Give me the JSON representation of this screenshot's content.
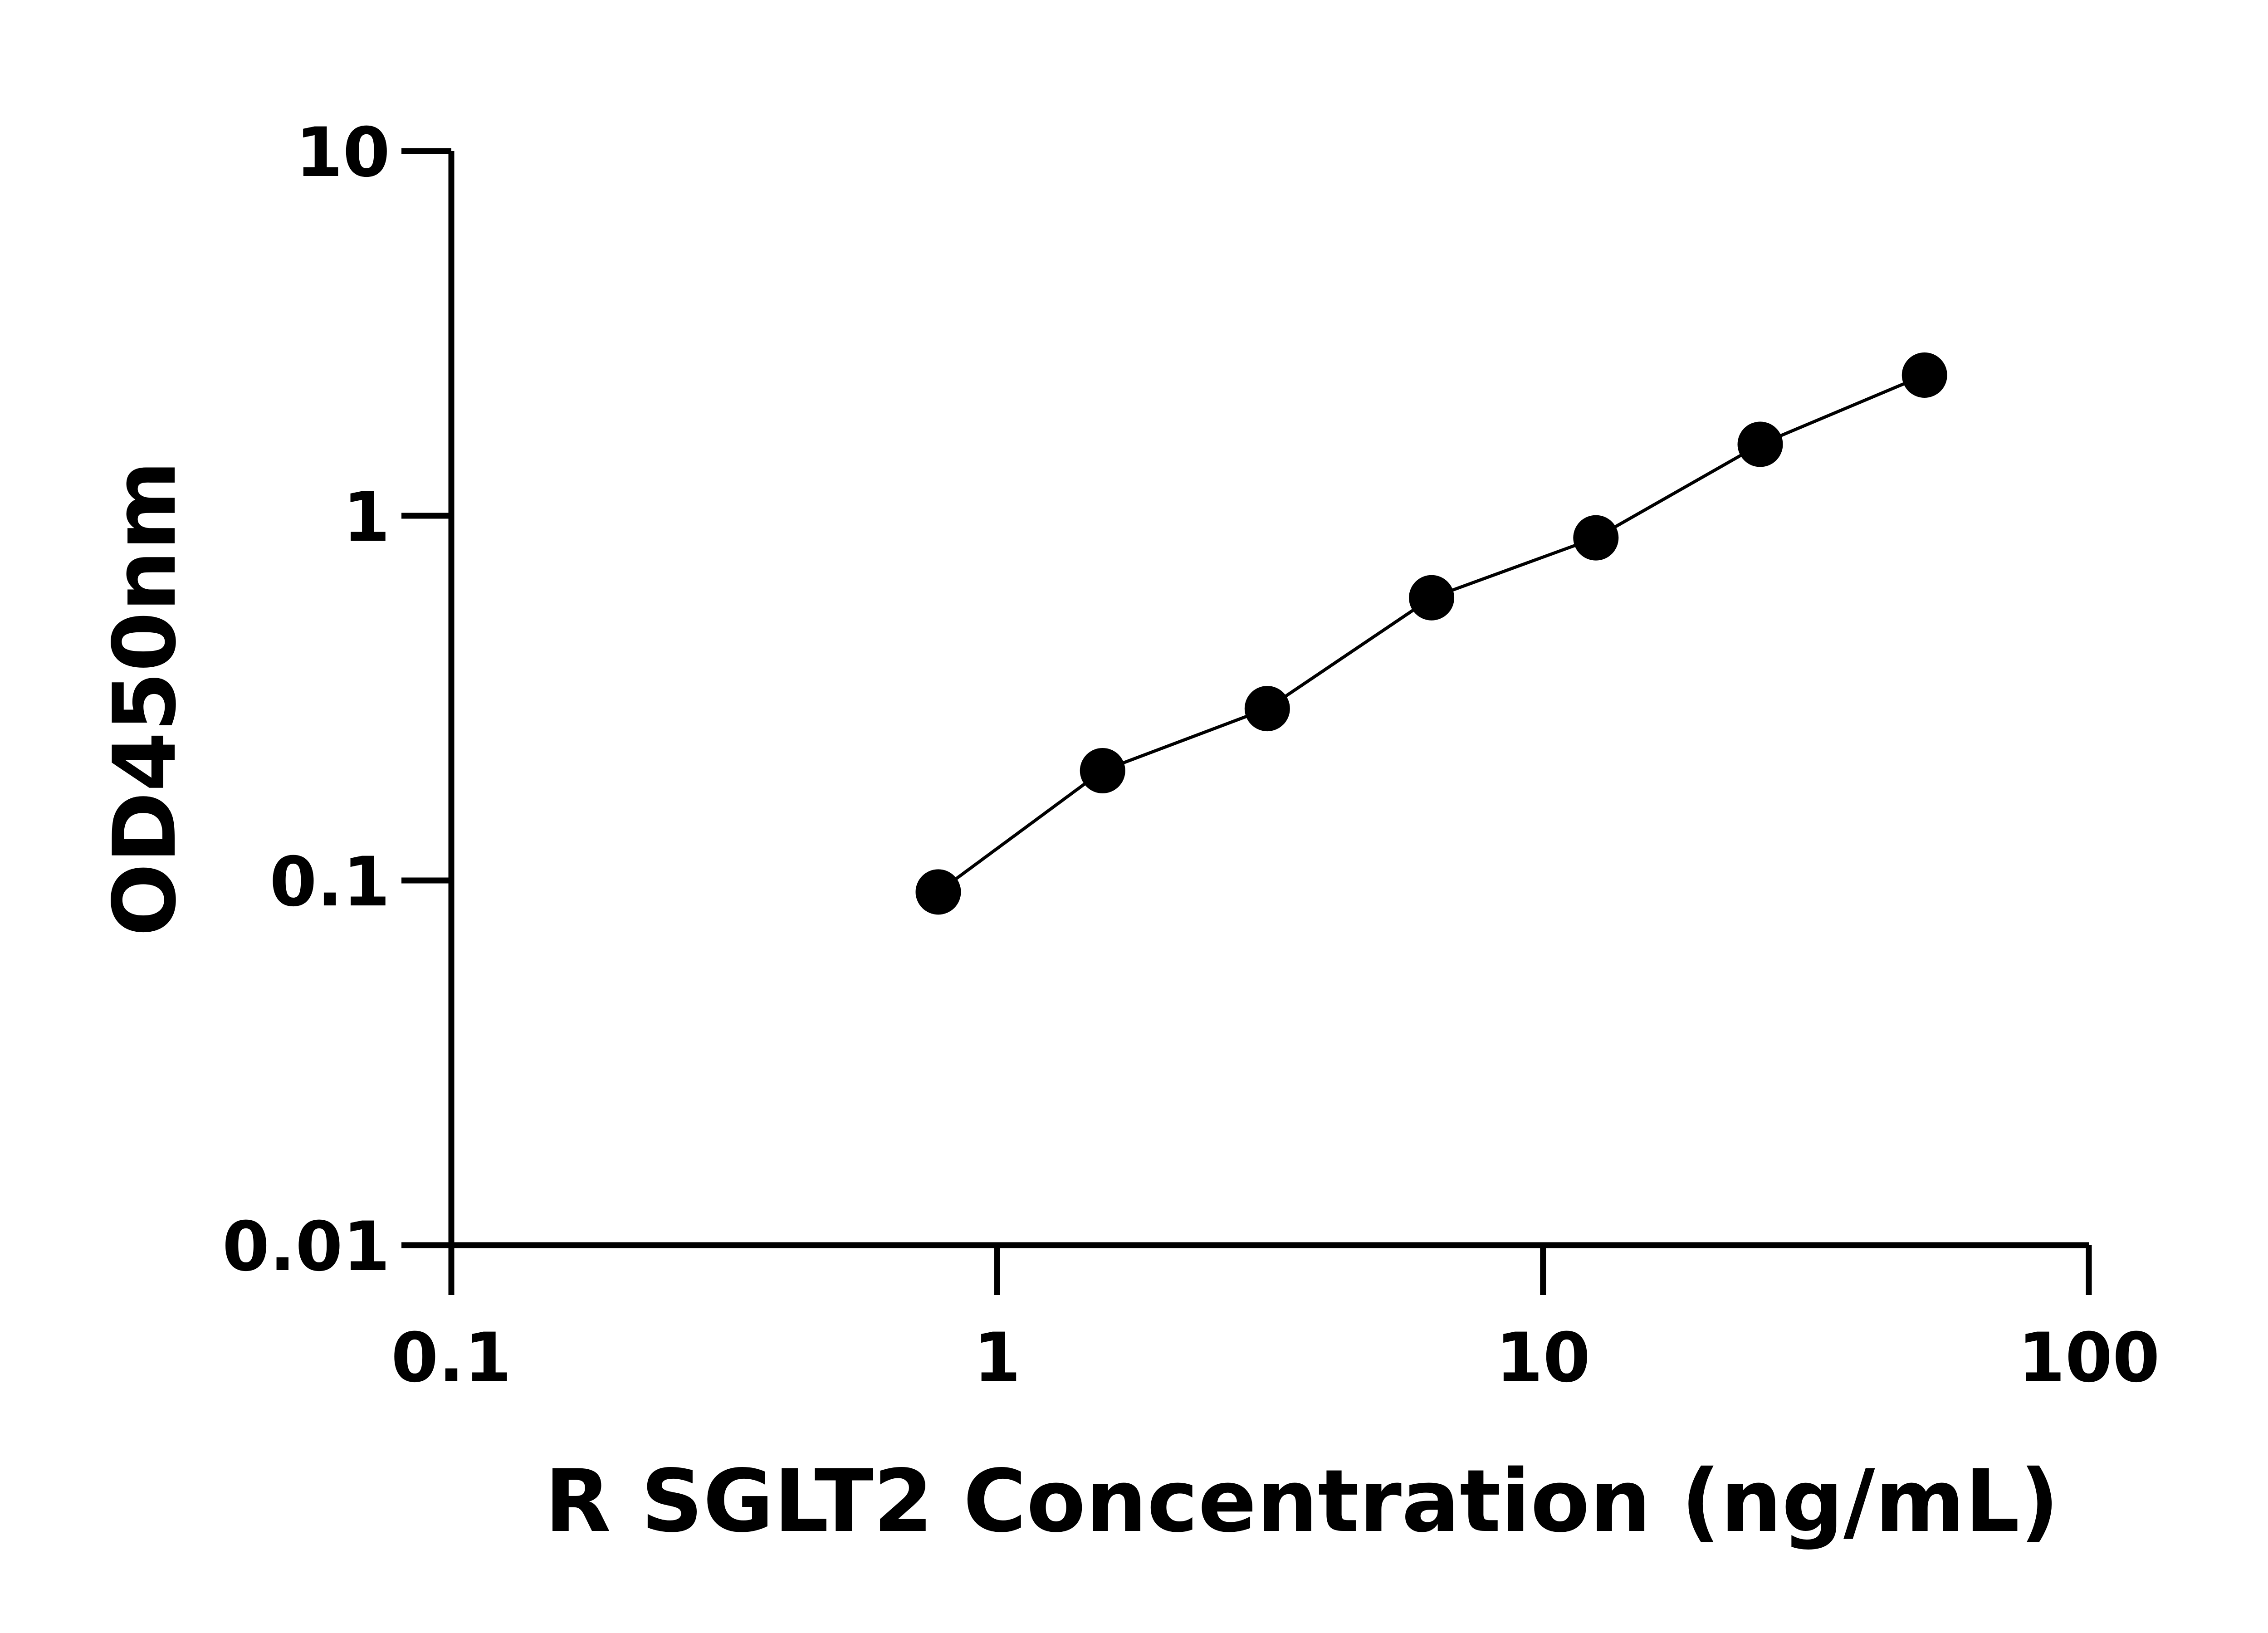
{
  "chart_data": {
    "type": "scatter",
    "title": "",
    "xlabel": "R SGLT2 Concentration (ng/mL)",
    "ylabel": "OD450nm",
    "x_scale": "log",
    "y_scale": "log",
    "xlim": [
      0.1,
      100
    ],
    "ylim": [
      0.01,
      10
    ],
    "x_ticks": [
      "0.1",
      "1",
      "10",
      "100"
    ],
    "y_ticks": [
      "0.01",
      "0.1",
      "1",
      "10"
    ],
    "grid": false,
    "fit_line": true,
    "color": "#000000",
    "points": [
      {
        "x": 0.78,
        "y": 0.093
      },
      {
        "x": 1.56,
        "y": 0.2
      },
      {
        "x": 3.125,
        "y": 0.296
      },
      {
        "x": 6.25,
        "y": 0.596
      },
      {
        "x": 12.5,
        "y": 0.87
      },
      {
        "x": 25,
        "y": 1.57
      },
      {
        "x": 50,
        "y": 2.43
      }
    ]
  }
}
